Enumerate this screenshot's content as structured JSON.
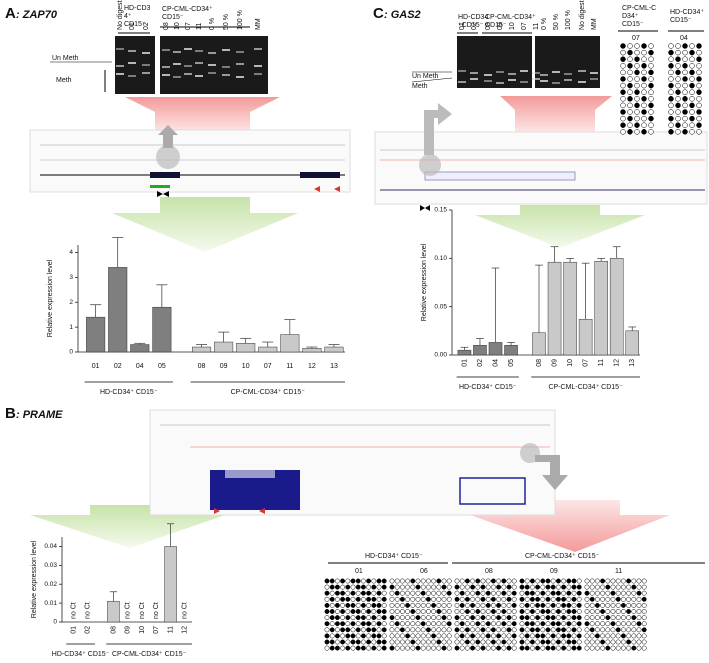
{
  "panels": [
    {
      "letter": "A",
      "gene": ": ZAP70"
    },
    {
      "letter": "B",
      "gene": ": PRAME"
    },
    {
      "letter": "C",
      "gene": ": GAS2"
    }
  ],
  "gel_a": {
    "lanes": [
      "No digestion",
      "01",
      "02",
      "08",
      "10",
      "07",
      "11",
      "0 %",
      "50 %",
      "100 %",
      "MM"
    ],
    "hd_label": [
      "HD-CD3",
      "4⁺",
      "CD15⁻"
    ],
    "cp_label": [
      "CP-CML-CD34⁺",
      "CD15⁻"
    ],
    "unmeth": "Un Meth",
    "meth": "Meth"
  },
  "gel_c": {
    "lanes": [
      "01",
      "02",
      "08",
      "09",
      "10",
      "07",
      "11",
      "0 %",
      "50 %",
      "100 %",
      "No digestion",
      "MM"
    ],
    "hd_label": [
      "HD-CD34",
      "⁺CD15⁻"
    ],
    "cp_label": [
      "CP-CML-CD34⁺",
      "CD15⁻"
    ],
    "unmeth": "Un Meth",
    "meth": "Meth"
  },
  "bisulfite_c": {
    "cp_label": [
      "CP-CML-C",
      "D34⁺",
      "CD15⁻"
    ],
    "cp_sample": "07",
    "hd_label": [
      "HD-CD34⁺",
      "CD15⁻"
    ],
    "hd_sample": "04"
  },
  "bisulfite_b": {
    "hd_label": "HD-CD34⁺ CD15⁻",
    "cp_label": "CP-CML-CD34⁺ CD15⁻",
    "samples": [
      "01",
      "06",
      "08",
      "09",
      "11"
    ]
  },
  "chart_data": [
    {
      "type": "bar",
      "ylabel": "Relative expression level",
      "ylim": [
        0,
        4.3
      ],
      "yticks": [
        0,
        1,
        2,
        3,
        4
      ],
      "groups": [
        {
          "label": "HD-CD34⁺ CD15⁻",
          "color": "#7f7f7f",
          "categories": [
            "01",
            "02",
            "04",
            "05"
          ],
          "values": [
            1.4,
            3.4,
            0.3,
            1.8
          ],
          "errors": [
            0.5,
            1.2,
            0.05,
            0.9
          ]
        },
        {
          "label": "CP-CML-CD34⁺ CD15⁻",
          "color": "#c9c9c9",
          "categories": [
            "08",
            "09",
            "10",
            "07",
            "11",
            "12",
            "13"
          ],
          "values": [
            0.2,
            0.4,
            0.35,
            0.2,
            0.7,
            0.15,
            0.2
          ],
          "errors": [
            0.1,
            0.4,
            0.2,
            0.2,
            0.6,
            0.05,
            0.1
          ]
        }
      ]
    },
    {
      "type": "bar",
      "ylabel": "Relative expression level",
      "ylim": [
        0,
        0.045
      ],
      "yticks": [
        0,
        0.01,
        0.02,
        0.03,
        0.04
      ],
      "groups": [
        {
          "label": "HD-CD34⁺ CD15⁻",
          "color": "#7f7f7f",
          "categories": [
            "01",
            "02"
          ],
          "values": [
            null,
            null
          ],
          "errors": [
            null,
            null
          ],
          "value_labels": [
            "no Ct",
            "no Ct"
          ]
        },
        {
          "label": "CP-CML-CD34⁺ CD15⁻",
          "color": "#c9c9c9",
          "categories": [
            "08",
            "09",
            "10",
            "07",
            "11",
            "12"
          ],
          "values": [
            0.011,
            null,
            null,
            null,
            0.04,
            null
          ],
          "errors": [
            0.005,
            null,
            null,
            null,
            0.012,
            null
          ],
          "value_labels": [
            null,
            "no Ct",
            "no Ct",
            "no Ct",
            null,
            "no Ct"
          ]
        }
      ]
    },
    {
      "type": "bar",
      "ylabel": "Relative expression level",
      "ylim": [
        0,
        0.15
      ],
      "yticks": [
        {
          "value": 0,
          "label": "0.00"
        },
        0.05,
        {
          "value": 0.1,
          "label": "0.10"
        },
        0.15
      ],
      "groups": [
        {
          "label": "HD-CD34⁺ CD15⁻",
          "color": "#7f7f7f",
          "categories": [
            "01",
            "02",
            "04",
            "05"
          ],
          "values": [
            0.005,
            0.01,
            0.013,
            0.01
          ],
          "errors": [
            0.003,
            0.007,
            0.077,
            0.003
          ]
        },
        {
          "label": "CP-CML-CD34⁺ CD15⁻",
          "color": "#c9c9c9",
          "categories": [
            "08",
            "09",
            "10",
            "07",
            "11",
            "12",
            "13"
          ],
          "values": [
            0.023,
            0.096,
            0.096,
            0.037,
            0.097,
            0.1,
            0.025
          ],
          "errors": [
            0.07,
            0.016,
            0.004,
            0.058,
            0.003,
            0.012,
            0.004
          ]
        }
      ]
    }
  ]
}
